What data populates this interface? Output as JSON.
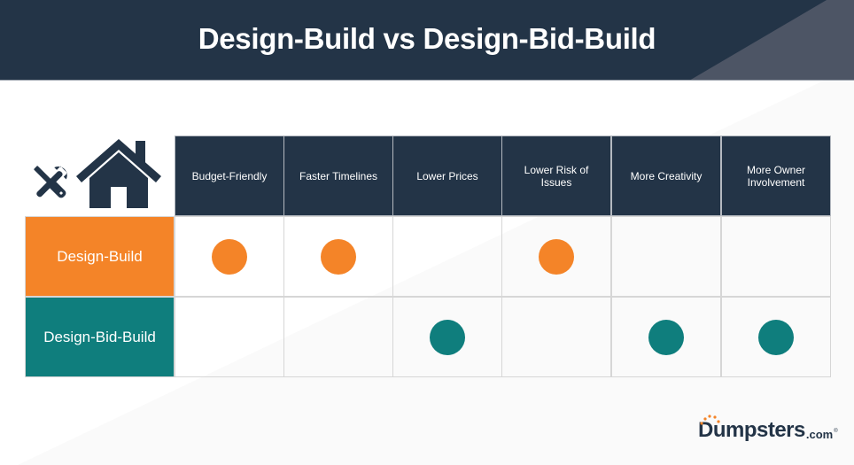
{
  "title": "Design-Build vs Design-Bid-Build",
  "colors": {
    "navy": "#233447",
    "slate": "#4d5565",
    "orange": "#f48428",
    "teal": "#0f7e7d",
    "grid": "#d6d6d6",
    "background_light": "#ffffff",
    "background_shade": "#fafafa"
  },
  "corner_icons": [
    "wrench-screwdriver-icon",
    "house-icon"
  ],
  "columns": [
    "Budget-Friendly",
    "Faster Timelines",
    "Lower Prices",
    "Lower Risk of Issues",
    "More Creativity",
    "More Owner Involvement"
  ],
  "rows": [
    {
      "label": "Design-Build",
      "color": "#f48428",
      "marks": [
        true,
        true,
        false,
        true,
        false,
        false
      ]
    },
    {
      "label": "Design-Bid-Build",
      "color": "#0f7e7d",
      "marks": [
        false,
        false,
        true,
        false,
        true,
        true
      ]
    }
  ],
  "logo": {
    "word": "Dumpsters",
    "suffix": ".com",
    "reg": "®"
  }
}
